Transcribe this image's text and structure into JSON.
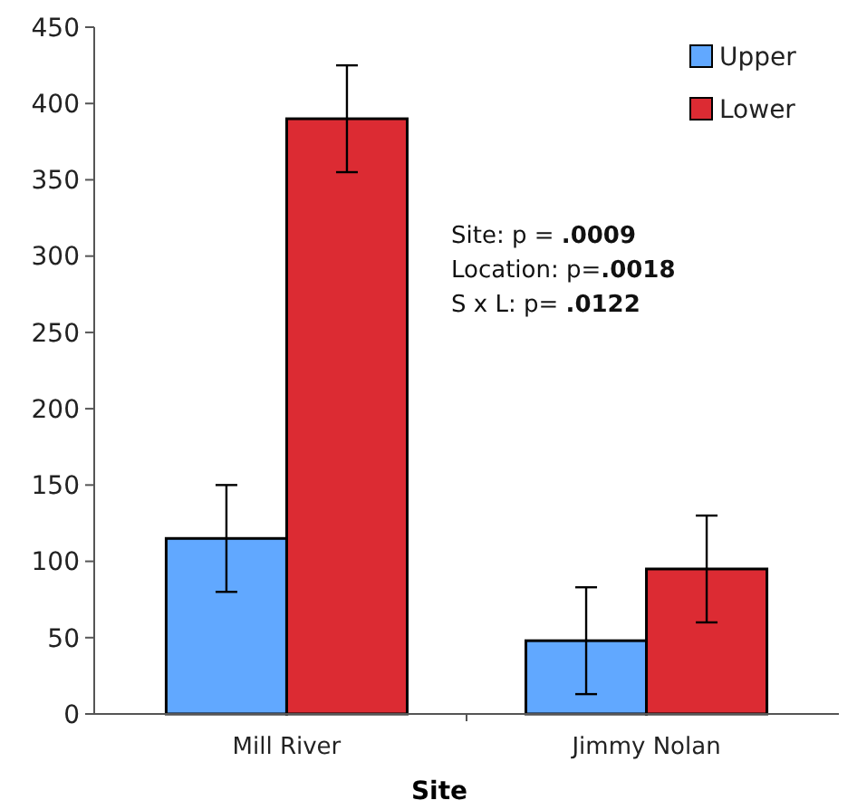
{
  "chart_data": {
    "type": "bar",
    "xlabel": "Site",
    "categories": [
      "Mill River",
      "Jimmy Nolan"
    ],
    "series": [
      {
        "name": "Upper",
        "color": "#61a8ff",
        "values": [
          115,
          48
        ],
        "errors": [
          35,
          35
        ]
      },
      {
        "name": "Lower",
        "color": "#dc2b33",
        "values": [
          390,
          95
        ],
        "errors": [
          35,
          35
        ]
      }
    ],
    "ylim": [
      0,
      450
    ],
    "yticks": [
      0,
      50,
      100,
      150,
      200,
      250,
      300,
      350,
      400,
      450
    ],
    "grid": false,
    "legend": "top right",
    "annotations": [
      "Site: p = .0009",
      "Location: p=.0018",
      "S x L: p= .0122"
    ]
  }
}
